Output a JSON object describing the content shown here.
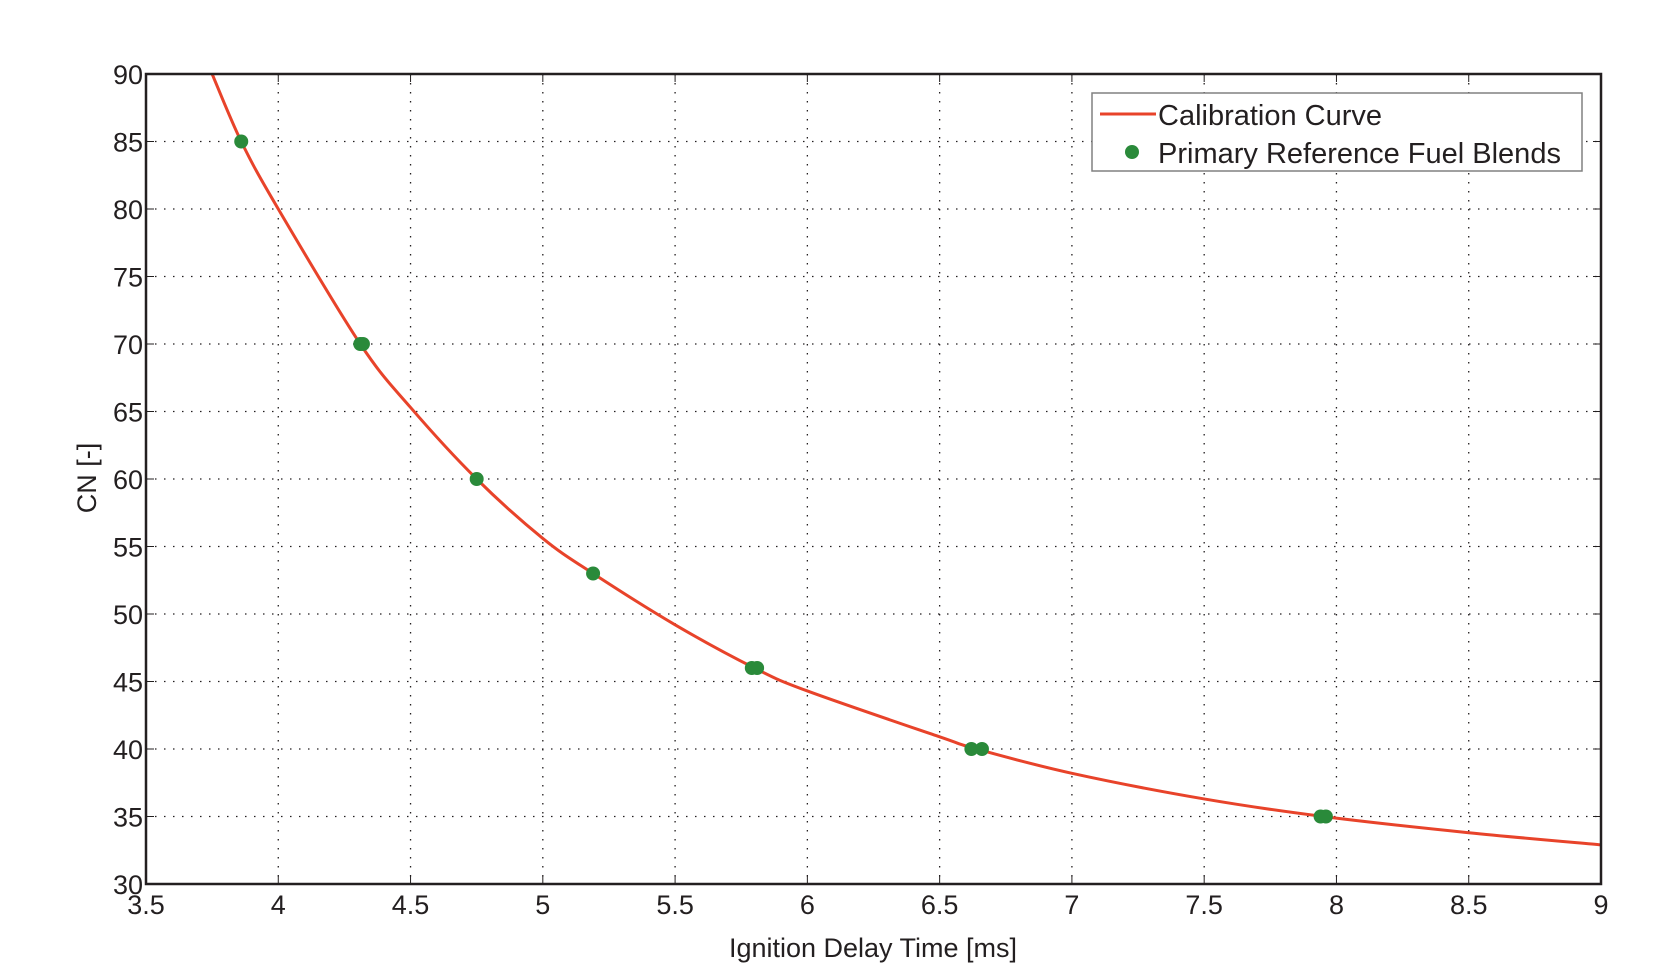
{
  "chart_data": {
    "type": "line",
    "title": "",
    "xlabel": "Ignition Delay Time [ms]",
    "ylabel": "CN [-]",
    "xlim": [
      3.5,
      9
    ],
    "ylim": [
      30,
      90
    ],
    "x_ticks": [
      3.5,
      4,
      4.5,
      5,
      5.5,
      6,
      6.5,
      7,
      7.5,
      8,
      8.5,
      9
    ],
    "x_tick_labels": [
      "3.5",
      "4",
      "4.5",
      "5",
      "5.5",
      "6",
      "6.5",
      "7",
      "7.5",
      "8",
      "8.5",
      "9"
    ],
    "y_ticks": [
      30,
      35,
      40,
      45,
      50,
      55,
      60,
      65,
      70,
      75,
      80,
      85,
      90
    ],
    "y_tick_labels": [
      "30",
      "35",
      "40",
      "45",
      "50",
      "55",
      "60",
      "65",
      "70",
      "75",
      "80",
      "85",
      "90"
    ],
    "grid": true,
    "legend_position": "upper right",
    "series": [
      {
        "name": "Calibration Curve",
        "type": "line",
        "color": "#e8432a",
        "x": [
          3.75,
          3.86,
          4.0,
          4.31,
          4.5,
          4.75,
          5.0,
          5.19,
          5.5,
          5.8,
          6.0,
          6.5,
          6.64,
          7.0,
          7.5,
          7.95,
          8.5,
          9.0
        ],
        "y": [
          90,
          85,
          80,
          70,
          65.3,
          60,
          55.6,
          53,
          49.2,
          46,
          44.3,
          40.9,
          40,
          38.2,
          36.3,
          35,
          33.8,
          32.9
        ]
      },
      {
        "name": "Primary Reference Fuel Blends",
        "type": "scatter",
        "color": "#2a8a3a",
        "x": [
          3.86,
          4.31,
          4.32,
          4.75,
          5.19,
          5.79,
          5.81,
          6.62,
          6.66,
          7.94,
          7.96
        ],
        "y": [
          85,
          70,
          70,
          60,
          53,
          46,
          46,
          40,
          40,
          35,
          35
        ]
      }
    ]
  },
  "legend": {
    "items": [
      {
        "label": "Calibration Curve",
        "symbol": "line"
      },
      {
        "label": "Primary Reference Fuel Blends",
        "symbol": "dot"
      }
    ]
  }
}
